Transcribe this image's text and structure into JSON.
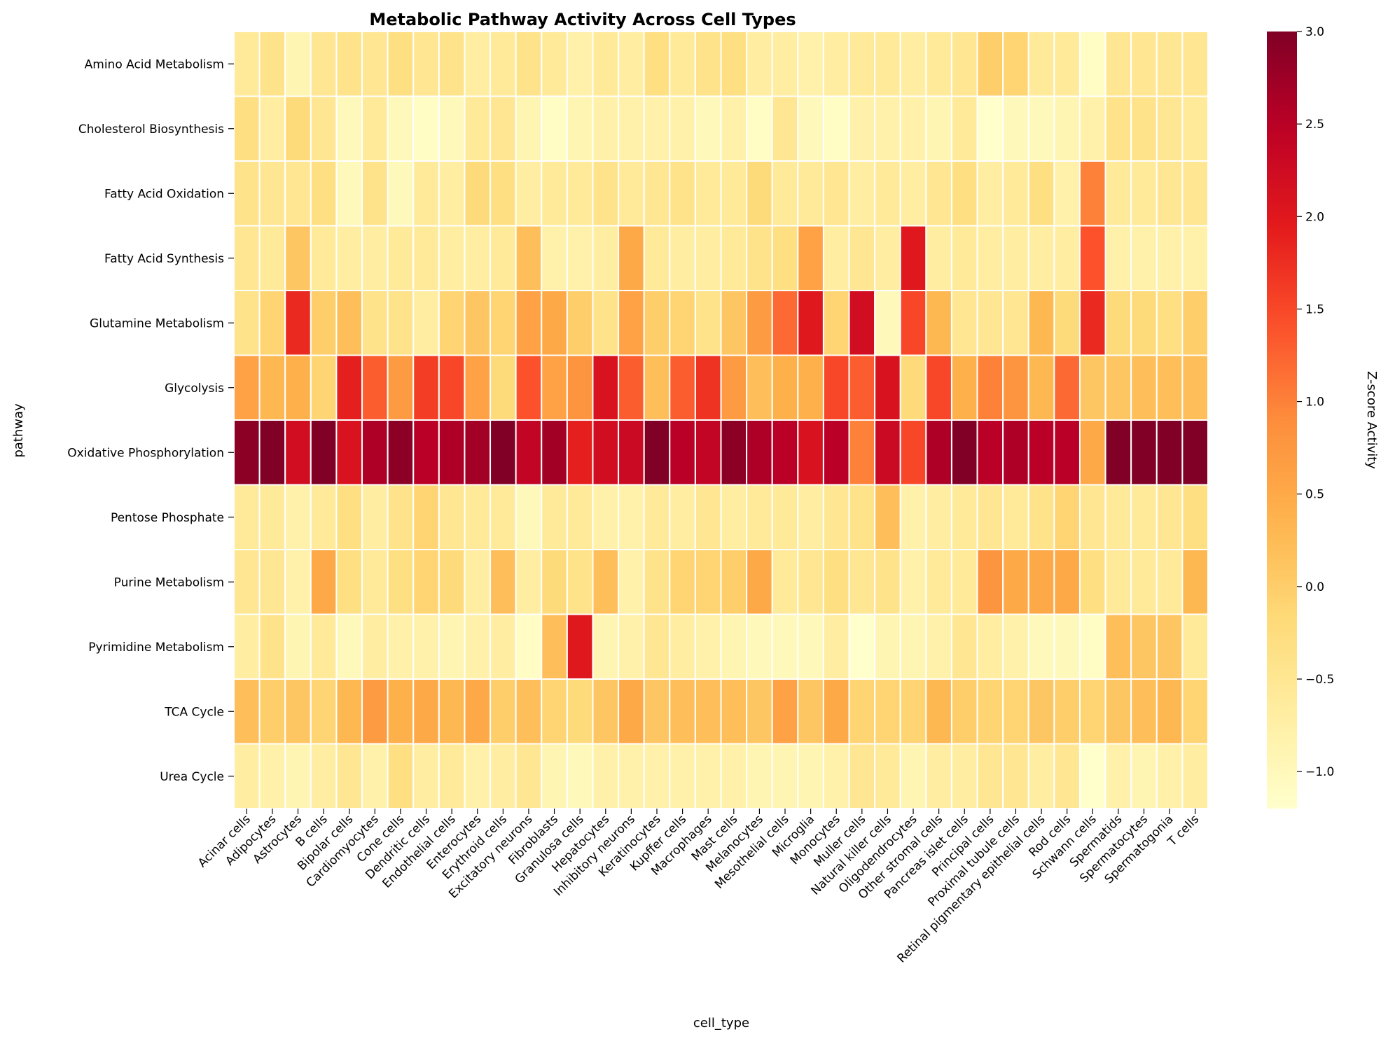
{
  "chart_data": {
    "type": "heatmap",
    "title": "Metabolic Pathway Activity Across Cell Types",
    "xlabel": "cell_type",
    "ylabel": "pathway",
    "colorbar_label": "Z-score Activity",
    "colormap": "YlOrRd",
    "color_range": [
      -1.2,
      3.0
    ],
    "colorbar_ticks": [
      3.0,
      2.5,
      2.0,
      1.5,
      1.0,
      0.5,
      0.0,
      -0.5,
      -1.0
    ],
    "colorbar_tick_labels": [
      "3.0",
      "2.5",
      "2.0",
      "1.5",
      "1.0",
      "0.5",
      "0.0",
      "−0.5",
      "−1.0"
    ],
    "grid": true,
    "x": [
      "Acinar cells",
      "Adipocytes",
      "Astrocytes",
      "B cells",
      "Bipolar cells",
      "Cardiomyocytes",
      "Cone cells",
      "Dendritic cells",
      "Endothelial cells",
      "Enterocytes",
      "Erythroid cells",
      "Excitatory neurons",
      "Fibroblasts",
      "Granulosa cells",
      "Hepatocytes",
      "Inhibitory neurons",
      "Keratinocytes",
      "Kupffer cells",
      "Macrophages",
      "Mast cells",
      "Melanocytes",
      "Mesothelial cells",
      "Microglia",
      "Monocytes",
      "Muller cells",
      "Natural killer cells",
      "Oligodendrocytes",
      "Other stromal cells",
      "Pancreas islet cells",
      "Principal cells",
      "Proximal tubule cells",
      "Retinal pigmentary epithelial cells",
      "Rod cells",
      "Schwann cells",
      "Spermatids",
      "Spermatocytes",
      "Spermatogonia",
      "T cells"
    ],
    "y": [
      "Amino Acid Metabolism",
      "Cholesterol Biosynthesis",
      "Fatty Acid Oxidation",
      "Fatty Acid Synthesis",
      "Glutamine Metabolism",
      "Glycolysis",
      "Oxidative Phosphorylation",
      "Pentose Phosphate",
      "Purine Metabolism",
      "Pyrimidine Metabolism",
      "TCA Cycle",
      "Urea Cycle"
    ],
    "values": [
      [
        -0.6,
        -0.4,
        -0.9,
        -0.5,
        -0.4,
        -0.5,
        -0.3,
        -0.5,
        -0.4,
        -0.7,
        -0.6,
        -0.4,
        -0.6,
        -0.8,
        -0.6,
        -0.7,
        -0.3,
        -0.6,
        -0.4,
        -0.3,
        -0.7,
        -0.7,
        -0.8,
        -0.7,
        -0.6,
        -0.6,
        -0.7,
        -0.6,
        -0.5,
        0.0,
        -0.1,
        -0.6,
        -0.6,
        -1.1,
        -0.5,
        -0.5,
        -0.5,
        -0.5
      ],
      [
        -0.3,
        -0.7,
        -0.2,
        -0.5,
        -1.0,
        -0.6,
        -1.0,
        -1.1,
        -1.0,
        -0.6,
        -0.5,
        -0.9,
        -1.1,
        -0.9,
        -0.8,
        -0.8,
        -0.8,
        -0.8,
        -1.0,
        -0.8,
        -1.1,
        -0.5,
        -1.0,
        -1.1,
        -0.8,
        -0.8,
        -0.8,
        -0.9,
        -0.6,
        -1.2,
        -1.0,
        -1.0,
        -0.9,
        -0.8,
        -0.4,
        -0.4,
        -0.5,
        -0.6
      ],
      [
        -0.4,
        -0.5,
        -0.5,
        -0.3,
        -1.0,
        -0.4,
        -1.0,
        -0.6,
        -0.7,
        -0.2,
        -0.3,
        -0.7,
        -0.6,
        -0.6,
        -0.4,
        -0.6,
        -0.5,
        -0.4,
        -0.6,
        -0.6,
        -0.2,
        -0.6,
        -0.6,
        -0.5,
        -0.7,
        -0.6,
        -0.7,
        -0.5,
        -0.3,
        -0.7,
        -0.6,
        -0.3,
        -0.8,
        1.0,
        -0.6,
        -0.6,
        -0.5,
        -0.5
      ],
      [
        -0.5,
        -0.6,
        0.1,
        -0.6,
        -0.7,
        -0.7,
        -0.6,
        -0.6,
        -0.7,
        -0.7,
        -0.6,
        0.2,
        -0.8,
        -0.8,
        -0.7,
        0.5,
        -0.6,
        -0.7,
        -0.7,
        -0.6,
        -0.4,
        -0.3,
        0.6,
        -0.7,
        -0.5,
        -0.7,
        2.0,
        -0.7,
        -0.6,
        -0.7,
        -0.7,
        -0.7,
        -0.7,
        1.4,
        -0.8,
        -0.8,
        -0.8,
        -0.8
      ],
      [
        -0.4,
        -0.1,
        1.8,
        0.0,
        0.2,
        -0.4,
        -0.4,
        -0.7,
        -0.1,
        0.1,
        -0.1,
        0.6,
        0.5,
        0.0,
        -0.4,
        0.6,
        0.0,
        -0.1,
        -0.4,
        0.1,
        0.7,
        1.2,
        2.0,
        -0.1,
        2.2,
        -1.0,
        1.5,
        0.3,
        -0.5,
        -0.5,
        -0.5,
        0.3,
        -0.2,
        1.8,
        -0.2,
        -0.2,
        -0.3,
        0.0
      ],
      [
        0.6,
        0.3,
        0.4,
        -0.1,
        1.9,
        1.3,
        0.7,
        1.6,
        1.5,
        0.6,
        -0.2,
        1.4,
        0.6,
        0.8,
        2.1,
        1.3,
        0.2,
        1.3,
        1.7,
        0.7,
        0.2,
        0.4,
        0.4,
        1.5,
        1.3,
        2.1,
        -0.2,
        1.5,
        0.4,
        1.0,
        0.8,
        0.3,
        1.2,
        0.1,
        0.1,
        0.2,
        0.2,
        0.2
      ],
      [
        2.9,
        3.0,
        2.2,
        3.0,
        2.1,
        2.6,
        2.9,
        2.5,
        2.6,
        2.7,
        3.0,
        2.4,
        2.7,
        1.9,
        2.2,
        2.3,
        3.0,
        2.5,
        2.4,
        2.9,
        2.6,
        2.5,
        2.1,
        2.5,
        1.0,
        2.3,
        1.5,
        2.6,
        3.0,
        2.5,
        2.6,
        2.5,
        2.5,
        0.5,
        3.0,
        3.0,
        3.0,
        3.0
      ],
      [
        -0.6,
        -0.6,
        -0.8,
        -0.6,
        -0.3,
        -0.7,
        -0.4,
        -0.1,
        -0.5,
        -0.6,
        -0.6,
        -1.0,
        -0.6,
        -0.6,
        -0.8,
        -0.8,
        -0.6,
        -0.7,
        -0.5,
        -0.7,
        -0.6,
        -0.6,
        -0.7,
        -0.5,
        -0.4,
        0.2,
        -0.8,
        -0.7,
        -0.6,
        -0.5,
        -0.6,
        -0.4,
        -0.1,
        -0.5,
        -0.6,
        -0.6,
        -0.5,
        -0.3
      ],
      [
        -0.5,
        -0.5,
        -0.8,
        0.5,
        -0.3,
        -0.6,
        -0.3,
        -0.1,
        -0.2,
        -0.7,
        0.2,
        -0.7,
        -0.2,
        -0.4,
        0.2,
        -0.8,
        -0.4,
        -0.1,
        -0.1,
        0.0,
        0.5,
        -0.6,
        -0.5,
        -0.3,
        -0.5,
        -0.4,
        -0.8,
        -0.6,
        -0.6,
        0.8,
        0.5,
        0.5,
        0.5,
        -0.3,
        -0.6,
        -0.6,
        -0.6,
        0.3
      ],
      [
        -0.7,
        -0.4,
        -0.9,
        -0.6,
        -1.0,
        -0.7,
        -0.8,
        -0.8,
        -0.9,
        -0.8,
        -0.7,
        -1.1,
        0.2,
        2.0,
        -0.9,
        -0.8,
        -0.5,
        -0.7,
        -0.8,
        -0.9,
        -1.0,
        -1.0,
        -1.0,
        -0.7,
        -1.2,
        -0.9,
        -0.9,
        -0.8,
        -0.5,
        -0.7,
        -0.8,
        -1.0,
        -1.0,
        -1.1,
        0.2,
        0.1,
        0.1,
        -0.6
      ],
      [
        0.2,
        0.0,
        0.1,
        -0.1,
        0.3,
        0.7,
        0.4,
        0.5,
        0.3,
        0.5,
        0.0,
        0.2,
        -0.1,
        -0.2,
        0.1,
        0.5,
        0.1,
        0.2,
        0.2,
        0.2,
        0.1,
        0.6,
        0.1,
        0.5,
        -0.1,
        -0.1,
        -0.1,
        0.3,
        0.0,
        -0.1,
        -0.1,
        0.1,
        0.0,
        -0.1,
        0.1,
        0.2,
        0.3,
        -0.1
      ],
      [
        -0.7,
        -0.8,
        -0.9,
        -0.7,
        -0.5,
        -0.8,
        -0.3,
        -0.7,
        -0.6,
        -0.8,
        -0.7,
        -0.5,
        -0.9,
        -1.0,
        -0.8,
        -0.8,
        -0.8,
        -0.8,
        -0.8,
        -0.8,
        -0.9,
        -0.9,
        -0.9,
        -0.8,
        -0.5,
        -0.6,
        -0.9,
        -0.7,
        -0.7,
        -0.5,
        -0.5,
        -0.7,
        -0.5,
        -1.2,
        -0.8,
        -0.9,
        -0.8,
        -0.7
      ]
    ]
  }
}
